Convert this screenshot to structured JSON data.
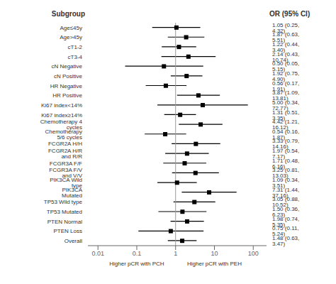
{
  "chart_data": {
    "type": "forest",
    "category_header": "Subgroup",
    "label_header": "OR (95% CI)",
    "categories": [
      "Age≤45y",
      "Age>45y",
      "cT1-2",
      "cT3-4",
      "cN Negative",
      "cN Positive",
      "HR Negative",
      "HR Positive",
      "Ki67 index<14%",
      "Ki67 index≥14%",
      "Chemotherapy 4 cycles",
      "Chemotherapy 5/6  cycles",
      "FCGR2A H/H",
      "FCGR2A H/R and R/R",
      "FCGR3A F/F",
      "FCGR3A F/V and V/V",
      "PIK3CA Wild type",
      "PIK3CA Mutated",
      "TP53 Wild type",
      "TP53 Mutated",
      "PTEN Normal",
      "PTEN Loss",
      "Overall"
    ],
    "values": [
      1.05,
      1.87,
      1.22,
      2.14,
      0.5,
      1.92,
      0.56,
      3.87,
      5.0,
      1.31,
      4.42,
      0.54,
      3.33,
      1.97,
      1.71,
      3.25,
      1.09,
      7.31,
      3.05,
      1.5,
      1.98,
      0.75,
      1.48
    ],
    "ci_low": [
      0.25,
      0.63,
      0.44,
      0.43,
      0.05,
      0.75,
      0.17,
      1.09,
      0.34,
      0.51,
      1.21,
      0.16,
      0.79,
      0.54,
      0.48,
      0.81,
      0.34,
      1.44,
      0.88,
      0.36,
      0.74,
      0.11,
      0.63
    ],
    "ci_high": [
      4.32,
      5.51,
      3.4,
      10.74,
      5.15,
      4.9,
      1.91,
      13.81,
      72.77,
      3.35,
      16.12,
      1.87,
      14.16,
      7.17,
      6.16,
      13.03,
      3.51,
      37.16,
      10.52,
      6.23,
      5.35,
      5.24,
      3.47
    ],
    "value_labels": [
      "1.05 (0.25, 4.32)",
      "1.87 (0.63, 5.51)",
      "1.22 (0.44, 3.40)",
      "2.14 (0.43, 10.74)",
      "0.50 (0.05, 5.15)",
      "1.92 (0.75, 4.90)",
      "0.56 (0.17, 1.91)",
      "3.87 (1.09, 13.81)",
      "5.00 (0.34, 72.77)",
      "1.31 (0.51, 3.35)",
      "4.42 (1.21, 16.12)",
      "0.54 (0.16, 1.87)",
      "3.33 (0.79, 14.16)",
      "1.97 (0.54, 7.17)",
      "1.71 (0.48, 6.16)",
      "3.25 (0.81, 13.03)",
      "1.09 (0.34, 3.51)",
      "7.31 (1.44, 37.16)",
      "3.05 (0.88, 10.52)",
      "1.50 (0.36, 6.23)",
      "1.98 (0.74, 5.35)",
      "0.75 (0.11, 5.24)",
      "1.48 (0.63, 3.47)"
    ],
    "data_labels": true,
    "color": "#000000",
    "log": "x",
    "xlim": [
      0.0055,
      220
    ],
    "xticks": [
      0.01,
      0.1,
      1,
      10,
      100
    ],
    "ref_line": 1,
    "annotations": [
      {
        "text": "Higher pCR with PCH",
        "x": 0.1
      },
      {
        "text": "Higher pCR with PEH",
        "x": 10
      }
    ],
    "grid": false
  }
}
